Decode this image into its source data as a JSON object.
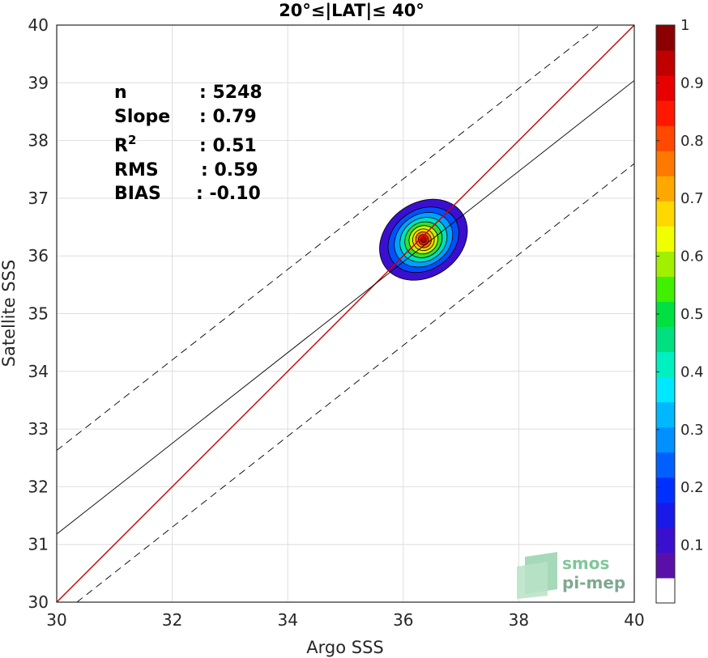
{
  "chart_data": {
    "type": "scatter",
    "title": "20°≤|LAT|≤ 40°",
    "xlabel": "Argo SSS",
    "ylabel": "Satellite SSS",
    "xlim": [
      30,
      40
    ],
    "ylim": [
      30,
      40
    ],
    "xticks": [
      "30",
      "32",
      "34",
      "36",
      "38",
      "40"
    ],
    "yticks": [
      "30",
      "31",
      "32",
      "33",
      "34",
      "35",
      "36",
      "37",
      "38",
      "39",
      "40"
    ],
    "grid": true,
    "stats": [
      {
        "label": "n",
        "value": ": 5248"
      },
      {
        "label": "Slope",
        "value": ": 0.79"
      },
      {
        "label": "R",
        "sup": "2",
        "value": ": 0.51"
      },
      {
        "label": "RMS",
        "value": ": 0.59"
      },
      {
        "label": "BIAS",
        "value": ": -0.10"
      }
    ],
    "lines": {
      "one_to_one": {
        "from": [
          30,
          30
        ],
        "to": [
          40,
          40
        ],
        "color": "#cc0000"
      },
      "regression": {
        "from": [
          30,
          31.18
        ],
        "to": [
          40,
          39.04
        ],
        "color": "#000000"
      },
      "upper_bound": {
        "from": [
          30,
          32.63
        ],
        "to": [
          39.4,
          40
        ],
        "color": "#000000",
        "style": "dashed"
      },
      "lower_bound": {
        "from": [
          30.35,
          30
        ],
        "to": [
          40,
          37.6
        ],
        "color": "#000000",
        "style": "dashed"
      }
    },
    "density": {
      "center": [
        36.35,
        36.28
      ],
      "levels": [
        {
          "level": 0.05,
          "rx": 1.22,
          "ry": 0.96,
          "color": "#3a0fcf"
        },
        {
          "level": 0.15,
          "rx": 0.98,
          "ry": 0.78,
          "color": "#0050ff"
        },
        {
          "level": 0.25,
          "rx": 0.8,
          "ry": 0.66,
          "color": "#00a0ff"
        },
        {
          "level": 0.35,
          "rx": 0.64,
          "ry": 0.55,
          "color": "#00e0c0"
        },
        {
          "level": 0.45,
          "rx": 0.5,
          "ry": 0.45,
          "color": "#30e030"
        },
        {
          "level": 0.55,
          "rx": 0.38,
          "ry": 0.36,
          "color": "#c8f000"
        },
        {
          "level": 0.65,
          "rx": 0.28,
          "ry": 0.28,
          "color": "#ffd000"
        },
        {
          "level": 0.75,
          "rx": 0.2,
          "ry": 0.21,
          "color": "#ff7000"
        },
        {
          "level": 0.85,
          "rx": 0.13,
          "ry": 0.14,
          "color": "#ff1a00"
        },
        {
          "level": 0.95,
          "rx": 0.07,
          "ry": 0.08,
          "color": "#b80000"
        }
      ]
    },
    "colorbar": {
      "range": [
        0,
        1
      ],
      "ticks": [
        "0.1",
        "0.2",
        "0.3",
        "0.4",
        "0.5",
        "0.6",
        "0.7",
        "0.8",
        "0.9",
        "1"
      ],
      "colors": [
        "#ffffff",
        "#5a10a8",
        "#3a0fcf",
        "#1a1ae8",
        "#0030ff",
        "#0060ff",
        "#0090ff",
        "#00b8ff",
        "#00e8ff",
        "#00f0c0",
        "#00e080",
        "#00e040",
        "#40f000",
        "#a0f000",
        "#f0ff00",
        "#ffd800",
        "#ffa800",
        "#ff7800",
        "#ff4800",
        "#ff1800",
        "#e80000",
        "#c00000",
        "#8b0000"
      ]
    },
    "logo": {
      "line1": "smos",
      "line2": "pi-mep"
    }
  }
}
